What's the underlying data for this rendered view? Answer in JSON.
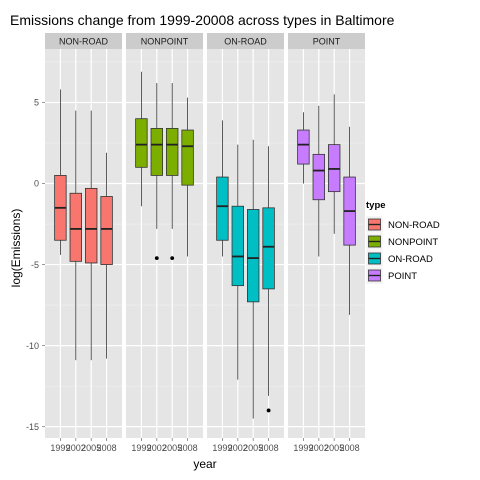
{
  "chart_data": {
    "type": "boxplot",
    "title": "Emissions change from 1999-20008 across types in Baltimore",
    "xlabel": "year",
    "ylabel": "log(Emissions)",
    "x_categories": [
      "1999",
      "2002",
      "2005",
      "2008"
    ],
    "ylim": [
      -15.7,
      8.3
    ],
    "yticks": [
      -15,
      -10,
      -5,
      0,
      5
    ],
    "grid": true,
    "legend": {
      "title": "type",
      "position": "right",
      "entries": [
        "NON-ROAD",
        "NONPOINT",
        "ON-ROAD",
        "POINT"
      ]
    },
    "colors": {
      "NON-ROAD": "#F8766D",
      "NONPOINT": "#7CAE00",
      "ON-ROAD": "#00BFC4",
      "POINT": "#C77CFF",
      "panel_bg": "#E5E5E5",
      "strip_bg": "#CCCCCC",
      "grid_major": "#FFFFFF",
      "grid_minor": "#F2F2F2"
    },
    "panels": [
      {
        "name": "NON-ROAD",
        "boxes": [
          {
            "year": "1999",
            "lower": -4.4,
            "q1": -3.5,
            "median": -1.5,
            "q3": 0.5,
            "upper": 5.8,
            "outliers": []
          },
          {
            "year": "2002",
            "lower": -10.9,
            "q1": -4.8,
            "median": -2.8,
            "q3": -0.6,
            "upper": 4.5,
            "outliers": []
          },
          {
            "year": "2005",
            "lower": -10.9,
            "q1": -4.9,
            "median": -2.8,
            "q3": -0.3,
            "upper": 4.5,
            "outliers": []
          },
          {
            "year": "2008",
            "lower": -10.8,
            "q1": -5.0,
            "median": -2.8,
            "q3": -0.8,
            "upper": 1.9,
            "outliers": []
          }
        ]
      },
      {
        "name": "NONPOINT",
        "boxes": [
          {
            "year": "1999",
            "lower": -1.4,
            "q1": 1.0,
            "median": 2.4,
            "q3": 4.0,
            "upper": 6.9,
            "outliers": []
          },
          {
            "year": "2002",
            "lower": -2.8,
            "q1": 0.5,
            "median": 2.4,
            "q3": 3.4,
            "upper": 6.2,
            "outliers": [
              -4.6
            ]
          },
          {
            "year": "2005",
            "lower": -2.8,
            "q1": 0.5,
            "median": 2.4,
            "q3": 3.4,
            "upper": 6.2,
            "outliers": [
              -4.6
            ]
          },
          {
            "year": "2008",
            "lower": -4.5,
            "q1": -0.1,
            "median": 2.3,
            "q3": 3.3,
            "upper": 5.3,
            "outliers": []
          }
        ]
      },
      {
        "name": "ON-ROAD",
        "boxes": [
          {
            "year": "1999",
            "lower": -4.5,
            "q1": -3.5,
            "median": -1.4,
            "q3": 0.4,
            "upper": 3.9,
            "outliers": []
          },
          {
            "year": "2002",
            "lower": -12.1,
            "q1": -6.3,
            "median": -4.5,
            "q3": -1.4,
            "upper": 2.4,
            "outliers": []
          },
          {
            "year": "2005",
            "lower": -14.5,
            "q1": -7.3,
            "median": -4.6,
            "q3": -1.6,
            "upper": 2.7,
            "outliers": []
          },
          {
            "year": "2008",
            "lower": -13.1,
            "q1": -6.5,
            "median": -3.9,
            "q3": -1.5,
            "upper": 2.3,
            "outliers": [
              -14.0
            ]
          }
        ]
      },
      {
        "name": "POINT",
        "boxes": [
          {
            "year": "1999",
            "lower": 0.0,
            "q1": 1.2,
            "median": 2.4,
            "q3": 3.3,
            "upper": 4.4,
            "outliers": []
          },
          {
            "year": "2002",
            "lower": -4.5,
            "q1": -1.0,
            "median": 0.8,
            "q3": 1.8,
            "upper": 4.8,
            "outliers": []
          },
          {
            "year": "2005",
            "lower": -3.1,
            "q1": -0.5,
            "median": 0.9,
            "q3": 2.4,
            "upper": 5.5,
            "outliers": []
          },
          {
            "year": "2008",
            "lower": -8.1,
            "q1": -3.8,
            "median": -1.7,
            "q3": 0.4,
            "upper": 3.5,
            "outliers": []
          }
        ]
      }
    ]
  }
}
